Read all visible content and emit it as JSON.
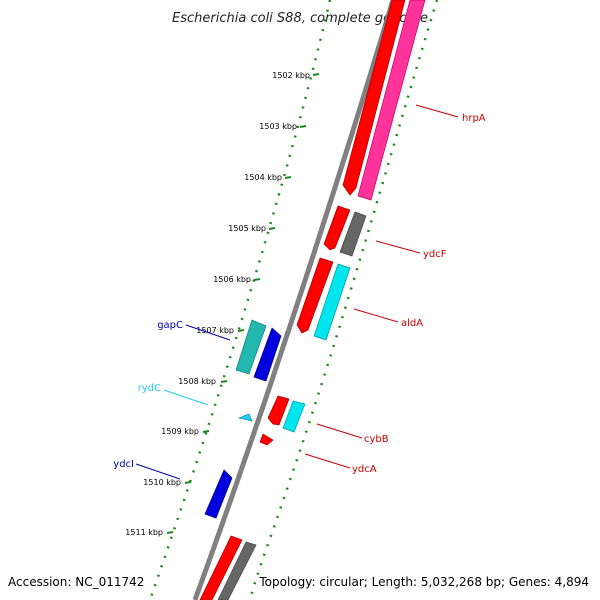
{
  "title": "Escherichia coli S88, complete genome",
  "footer": {
    "accession": "Accession: NC_011742",
    "summary": "Topology: circular; Length: 5,032,268 bp; Genes: 4,894"
  },
  "colors": {
    "backbone": "#808080",
    "tick": "#1a8a1a",
    "forward_red": "#ff0000",
    "reverse_red": "#cc0000",
    "pink": "#ff3399",
    "gray_gene": "#666666",
    "cyan": "#00e5ee",
    "teal": "#22b8b0",
    "blue": "#0000dd",
    "label_red": "#cc0000",
    "label_blue": "#0000aa",
    "label_cyan": "#22ccee"
  },
  "ticks": [
    {
      "label": "1502 kbp"
    },
    {
      "label": "1503 kbp"
    },
    {
      "label": "1504 kbp"
    },
    {
      "label": "1505 kbp"
    },
    {
      "label": "1506 kbp"
    },
    {
      "label": "1507 kbp"
    },
    {
      "label": "1508 kbp"
    },
    {
      "label": "1509 kbp"
    },
    {
      "label": "1510 kbp"
    },
    {
      "label": "1511 kbp"
    }
  ],
  "gene_labels": [
    {
      "name": "hrpA",
      "color": "#cc0000"
    },
    {
      "name": "ydcF",
      "color": "#cc0000"
    },
    {
      "name": "aldA",
      "color": "#cc0000"
    },
    {
      "name": "cybB",
      "color": "#cc0000"
    },
    {
      "name": "ydcA",
      "color": "#cc0000"
    },
    {
      "name": "gapC",
      "color": "#0000aa"
    },
    {
      "name": "rydC",
      "color": "#22ccee"
    },
    {
      "name": "ydcI",
      "color": "#0000aa"
    }
  ]
}
